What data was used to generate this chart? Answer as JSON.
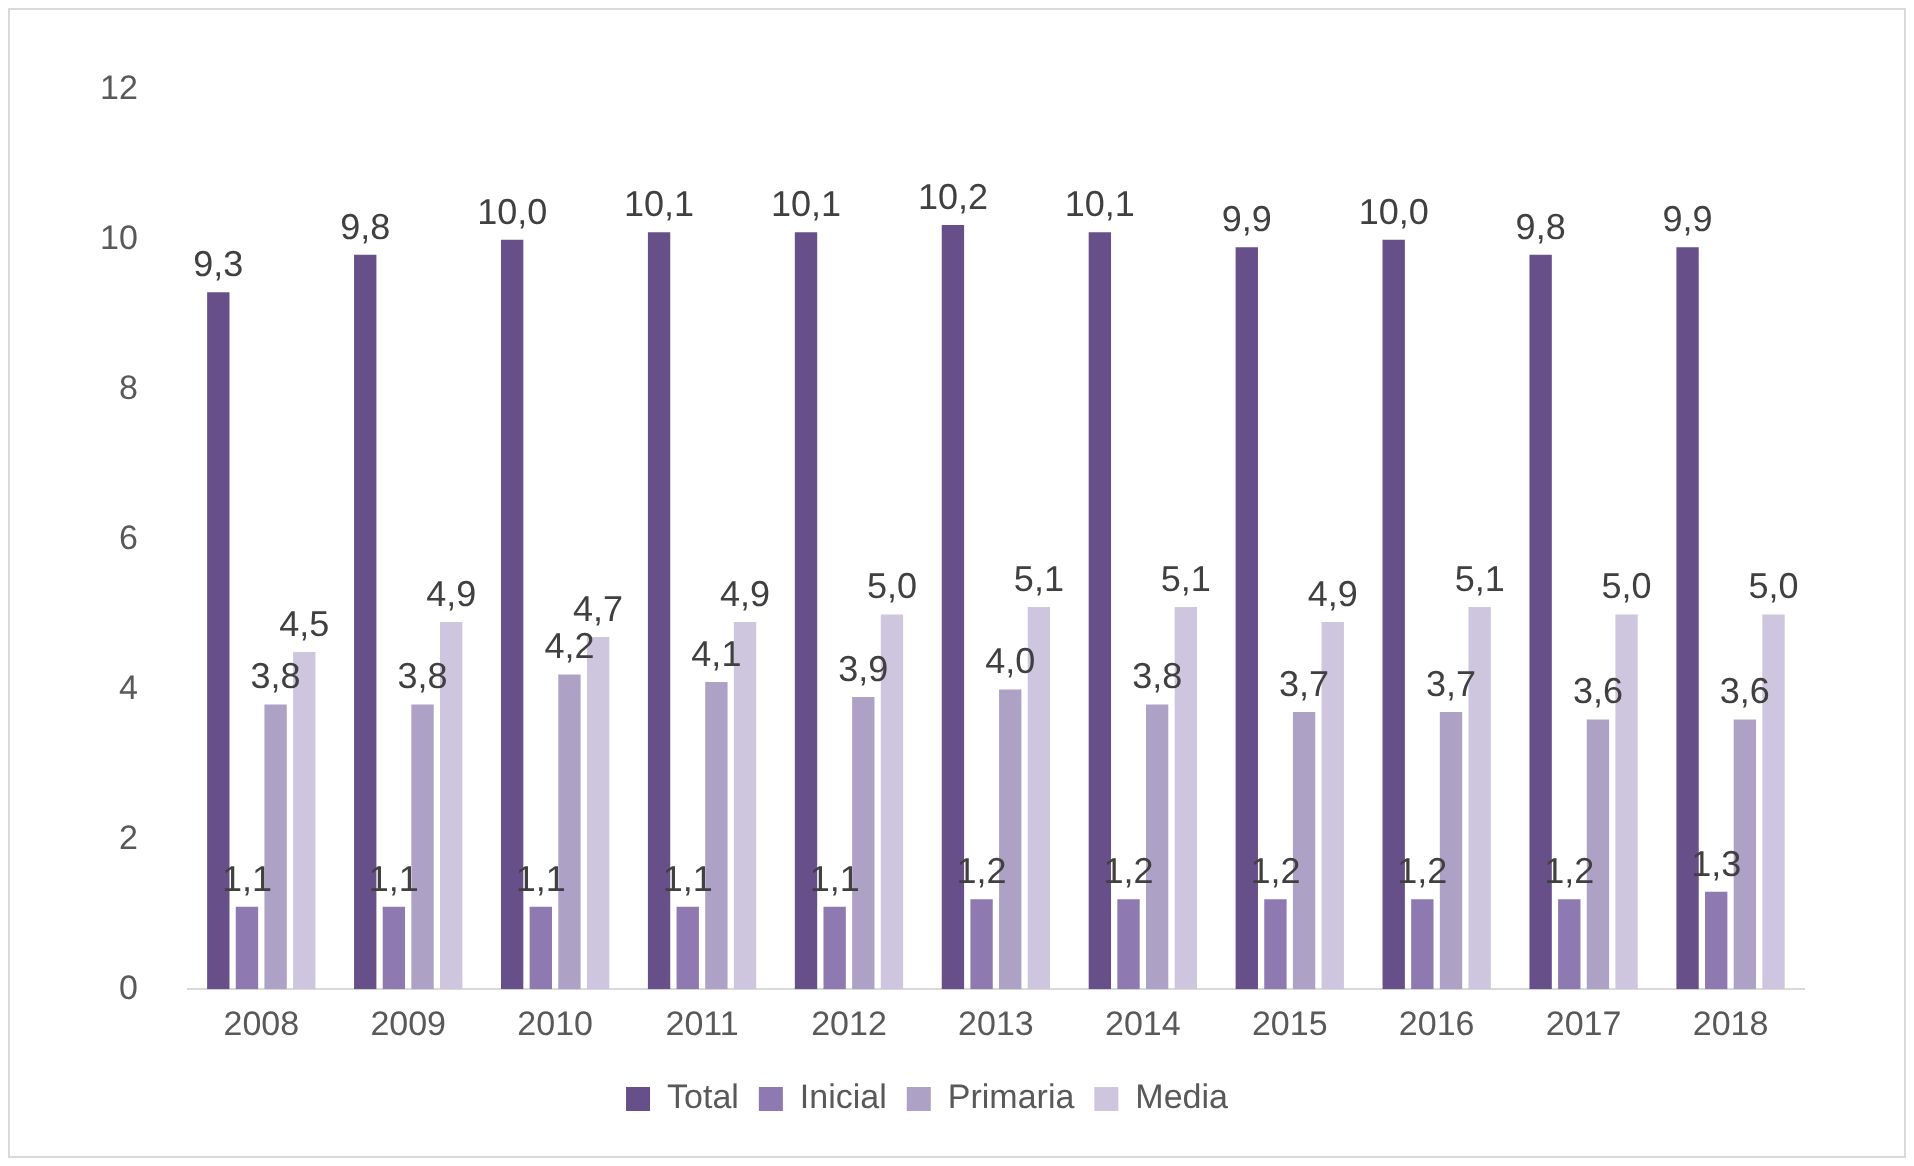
{
  "chart_data": {
    "type": "bar",
    "categories": [
      "2008",
      "2009",
      "2010",
      "2011",
      "2012",
      "2013",
      "2014",
      "2015",
      "2016",
      "2017",
      "2018"
    ],
    "series": [
      {
        "name": "Total",
        "color": "#674f8a",
        "values": [
          9.3,
          9.8,
          10.0,
          10.1,
          10.1,
          10.2,
          10.1,
          9.9,
          10.0,
          9.8,
          9.9
        ],
        "value_labels": [
          "9,3",
          "9,8",
          "10,0",
          "10,1",
          "10,1",
          "10,2",
          "10,1",
          "9,9",
          "10,0",
          "9,8",
          "9,9"
        ]
      },
      {
        "name": "Inicial",
        "color": "#8e79b0",
        "values": [
          1.1,
          1.1,
          1.1,
          1.1,
          1.1,
          1.2,
          1.2,
          1.2,
          1.2,
          1.2,
          1.3
        ],
        "value_labels": [
          "1,1",
          "1,1",
          "1,1",
          "1,1",
          "1,1",
          "1,2",
          "1,2",
          "1,2",
          "1,2",
          "1,2",
          "1,3"
        ]
      },
      {
        "name": "Primaria",
        "color": "#ada1c6",
        "values": [
          3.8,
          3.8,
          4.2,
          4.1,
          3.9,
          4.0,
          3.8,
          3.7,
          3.7,
          3.6,
          3.6
        ],
        "value_labels": [
          "3,8",
          "3,8",
          "4,2",
          "4,1",
          "3,9",
          "4,0",
          "3,8",
          "3,7",
          "3,7",
          "3,6",
          "3,6"
        ]
      },
      {
        "name": "Media",
        "color": "#cdc6de",
        "values": [
          4.5,
          4.9,
          4.7,
          4.9,
          5.0,
          5.1,
          5.1,
          4.9,
          5.1,
          5.0,
          5.0
        ],
        "value_labels": [
          "4,5",
          "4,9",
          "4,7",
          "4,9",
          "5,0",
          "5,1",
          "5,1",
          "4,9",
          "5,1",
          "5,0",
          "5,0"
        ]
      }
    ],
    "ylim": [
      0,
      12
    ],
    "yticks": [
      0,
      2,
      4,
      6,
      8,
      10,
      12
    ],
    "grid": false,
    "legend": "bottom"
  }
}
